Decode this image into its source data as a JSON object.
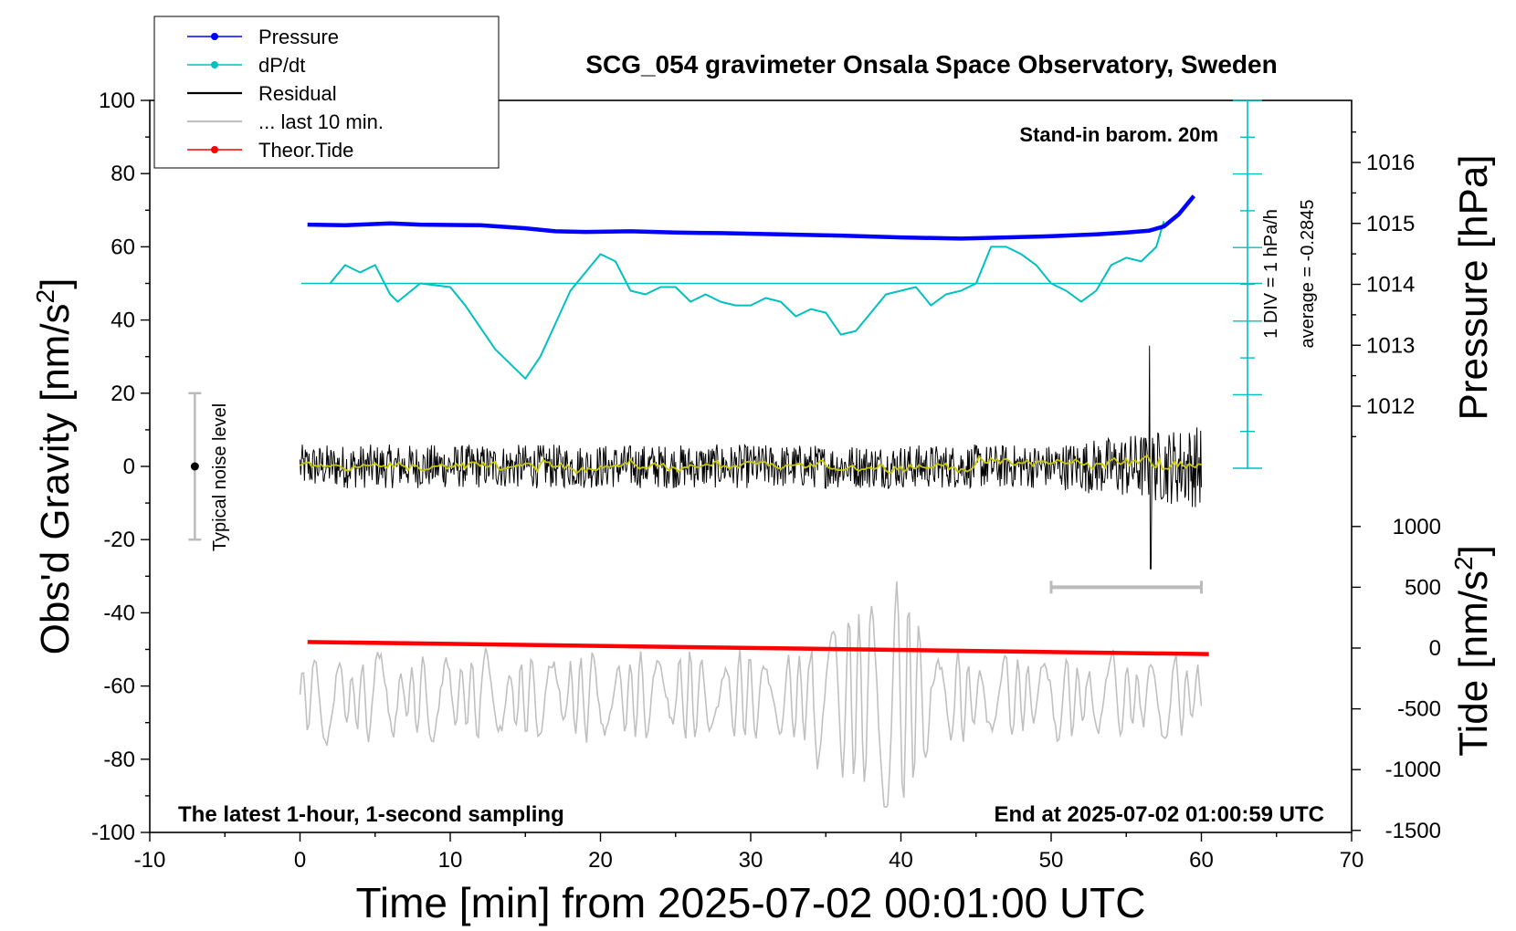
{
  "chart_data": {
    "type": "line",
    "title": "SCG_054 gravimeter Onsala Space Observatory, Sweden",
    "xlabel": "Time [min] from 2025-07-02 00:01:00 UTC",
    "ylabel_left": "Obs'd Gravity [nm/s",
    "ylabel_left_sup": "2",
    "ylabel_left_end": "]",
    "ylabel_right_pressure": "Pressure [hPa]",
    "ylabel_right_tide": "Tide [nm/s",
    "ylabel_right_tide_sup": "2",
    "ylabel_right_tide_end": "]",
    "xlim": [
      -10,
      70
    ],
    "ylim": [
      -100,
      100
    ],
    "pressure_lim": [
      1011,
      1017
    ],
    "tide_lim": [
      -1500,
      1500
    ],
    "x_ticks": [
      "-10",
      "0",
      "10",
      "20",
      "30",
      "40",
      "50",
      "60",
      "70"
    ],
    "y_ticks": [
      "-100",
      "-80",
      "-60",
      "-40",
      "-20",
      "0",
      "20",
      "40",
      "60",
      "80",
      "100"
    ],
    "pressure_ticks": [
      "1012",
      "1013",
      "1014",
      "1015",
      "1016"
    ],
    "tide_ticks": [
      "-1500",
      "-1000",
      "-500",
      "0",
      "500",
      "1000"
    ],
    "annotations": {
      "stand_in": "Stand-in barom. 20m",
      "latest": "The latest 1-hour, 1-second sampling",
      "end_at": "End at 2025-07-02 01:00:59 UTC",
      "noise": "Typical noise level",
      "div": "1 DIV = 1 hPa/h",
      "average": "average = -0.2845"
    },
    "legend_position": "top-left",
    "series": [
      {
        "name": "Pressure",
        "color": "#0000ff",
        "axis": "pressure",
        "x": [
          0.5,
          3,
          6,
          8,
          12,
          15,
          17,
          19,
          22,
          25,
          28,
          32,
          36,
          40,
          44,
          47,
          50,
          53,
          55,
          56.5,
          57.5,
          58.5,
          59.5
        ],
        "values": [
          1014.98,
          1014.97,
          1015.0,
          1014.98,
          1014.97,
          1014.92,
          1014.87,
          1014.86,
          1014.87,
          1014.85,
          1014.84,
          1014.82,
          1014.8,
          1014.77,
          1014.75,
          1014.77,
          1014.79,
          1014.82,
          1014.85,
          1014.88,
          1014.95,
          1015.15,
          1015.45
        ]
      },
      {
        "name": "dP/dt",
        "color": "#00c0c0",
        "axis": "gravity",
        "x": [
          2,
          3,
          4,
          5,
          6,
          6.5,
          8,
          10,
          11,
          13,
          15,
          16,
          18,
          20,
          21,
          22,
          23,
          24,
          25,
          26,
          27,
          28,
          29,
          30,
          31,
          32,
          33,
          34,
          35,
          36,
          37,
          38,
          39,
          40,
          41,
          42,
          43,
          44,
          45,
          46,
          47,
          48,
          49,
          50,
          51,
          52,
          53,
          54,
          55,
          56,
          57,
          57.5
        ],
        "values": [
          50,
          55,
          53,
          55,
          47,
          45,
          50,
          49,
          44,
          32,
          24,
          30,
          48,
          58,
          56,
          48,
          47,
          49,
          49,
          45,
          47,
          45,
          44,
          44,
          46,
          45,
          41,
          43,
          42,
          36,
          37,
          42,
          47,
          48,
          49,
          44,
          47,
          48,
          50,
          60,
          60,
          58,
          55,
          50,
          48,
          45,
          48,
          55,
          57,
          56,
          60,
          67
        ]
      },
      {
        "name": "Residual",
        "color": "#000000",
        "axis": "gravity",
        "x_range": [
          0,
          60
        ],
        "envelope": 6
      },
      {
        "name": "... last 10 min.",
        "color": "#c0c0c0",
        "axis": "gravity",
        "x_range": [
          0,
          60
        ],
        "center": -63
      },
      {
        "name": "Theor.Tide",
        "color": "#ff0000",
        "axis": "tide",
        "x": [
          0.5,
          60.5
        ],
        "values": [
          50,
          -50
        ]
      }
    ]
  },
  "legend": [
    {
      "label": "Pressure",
      "color": "#0000ff",
      "marker": true
    },
    {
      "label": "dP/dt",
      "color": "#00c0c0",
      "marker": true
    },
    {
      "label": "Residual",
      "color": "#000000",
      "marker": false
    },
    {
      "label": "... last 10 min.",
      "color": "#c0c0c0",
      "marker": false
    },
    {
      "label": "Theor.Tide",
      "color": "#ff0000",
      "marker": true
    }
  ],
  "colors": {
    "pressure": "#0000ff",
    "dpdt": "#00c0c0",
    "residual": "#000000",
    "residual_smooth": "#c8c800",
    "last10": "#c0c0c0",
    "tide": "#ff0000"
  }
}
